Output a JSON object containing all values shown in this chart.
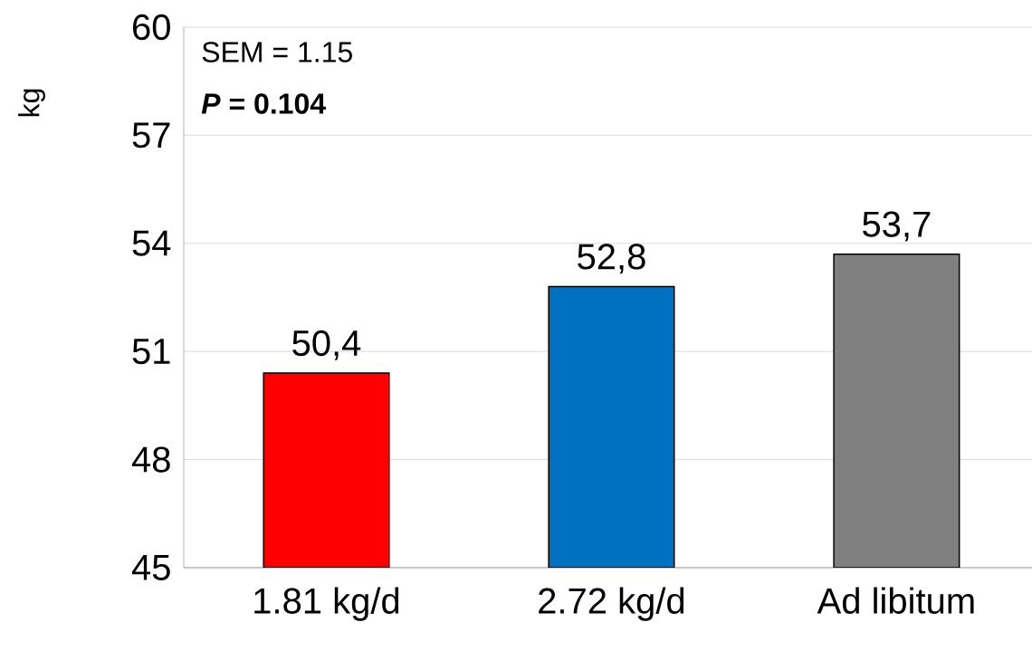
{
  "chart_data": {
    "type": "bar",
    "ylabel": "kg",
    "categories": [
      "1.81 kg/d",
      "2.72 kg/d",
      "Ad libitum"
    ],
    "values": [
      50.4,
      52.8,
      53.7
    ],
    "colors": [
      "#ff0000",
      "#0070c0",
      "#808080"
    ],
    "value_labels": [
      "50,4",
      "52,8",
      "53,7"
    ],
    "ylim": [
      45,
      60
    ],
    "yticks": [
      45,
      48,
      51,
      54,
      57,
      60
    ],
    "grid": "y",
    "annotations": [
      "SEM = 1.15",
      "*P* = 0.104"
    ]
  }
}
